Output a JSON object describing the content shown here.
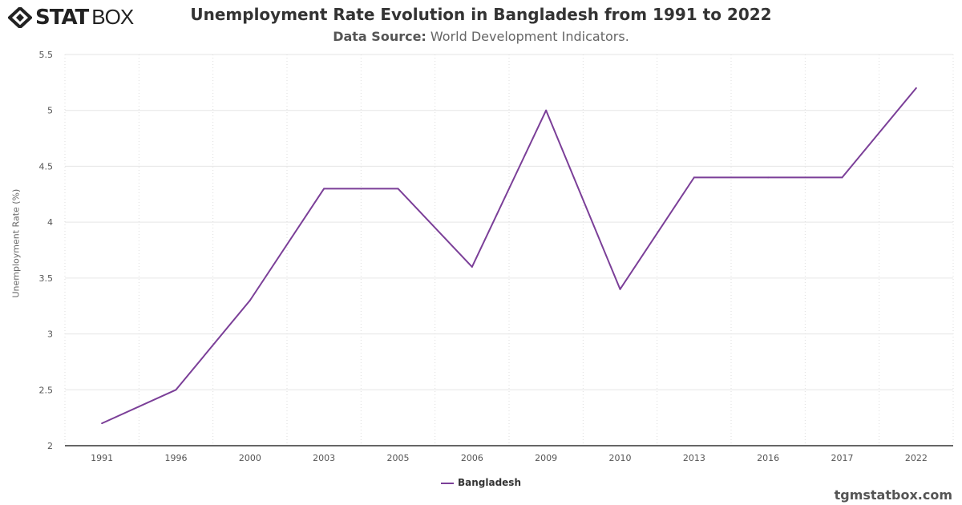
{
  "logo": {
    "text_bold": "STAT",
    "text_light": "BOX"
  },
  "header": {
    "title": "Unemployment Rate Evolution in Bangladesh from 1991 to 2022",
    "source_label": "Data Source:",
    "source_value": "World Development Indicators."
  },
  "credit": "tgmstatbox.com",
  "colors": {
    "series": "#7b3f98"
  },
  "chart_data": {
    "type": "line",
    "title": "Unemployment Rate Evolution in Bangladesh from 1991 to 2022",
    "ylabel": "Unemployment Rate (%)",
    "xlabel": "",
    "categories": [
      "1991",
      "1996",
      "2000",
      "2003",
      "2005",
      "2006",
      "2009",
      "2010",
      "2013",
      "2016",
      "2017",
      "2022"
    ],
    "series": [
      {
        "name": "Bangladesh",
        "values": [
          2.2,
          2.5,
          3.3,
          4.3,
          4.3,
          3.6,
          5.0,
          3.4,
          4.4,
          4.4,
          4.4,
          5.2
        ]
      }
    ],
    "ylim": [
      2,
      5.5
    ],
    "yticks": [
      "2",
      "2.5",
      "3",
      "3.5",
      "4",
      "4.5",
      "5",
      "5.5"
    ],
    "grid": true,
    "legend": "bottom-center"
  }
}
